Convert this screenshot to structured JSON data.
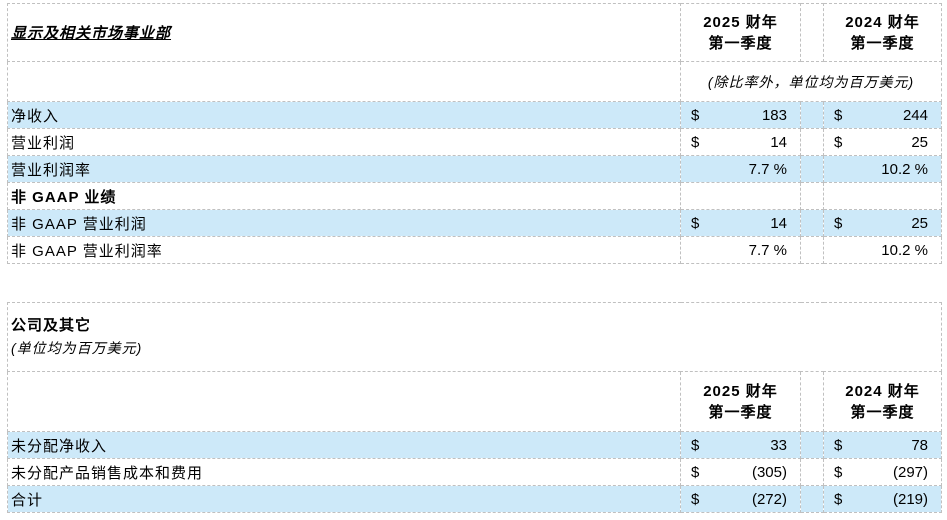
{
  "colors": {
    "row_highlight": "#CDE9F9",
    "grid_border": "#C0C0C0",
    "text": "#000000",
    "background": "#FFFFFF"
  },
  "table1": {
    "title": "显示及相关市场事业部",
    "col_headers": [
      {
        "line1": "2025 财年",
        "line2": "第一季度"
      },
      {
        "line1": "2024 财年",
        "line2": "第一季度"
      }
    ],
    "note": "(除比率外，单位均为百万美元)",
    "rows": [
      {
        "label": "净收入",
        "bold": false,
        "currency": "$",
        "v2025": "183",
        "v2024": "244",
        "highlight": true
      },
      {
        "label": "营业利润",
        "bold": false,
        "currency": "$",
        "v2025": "14",
        "v2024": "25",
        "highlight": false
      },
      {
        "label": "营业利润率",
        "bold": false,
        "currency": "",
        "v2025": "7.7 %",
        "v2024": "10.2 %",
        "highlight": true
      },
      {
        "label": "非 GAAP 业绩",
        "bold": true,
        "currency": "",
        "v2025": "",
        "v2024": "",
        "highlight": false
      },
      {
        "label": "非 GAAP 营业利润",
        "bold": false,
        "currency": "$",
        "v2025": "14",
        "v2024": "25",
        "highlight": true
      },
      {
        "label": "非 GAAP 营业利润率",
        "bold": false,
        "currency": "",
        "v2025": "7.7 %",
        "v2024": "10.2 %",
        "highlight": false
      }
    ]
  },
  "table2": {
    "title": "公司及其它",
    "subtitle": "(单位均为百万美元)",
    "col_headers": [
      {
        "line1": "2025 财年",
        "line2": "第一季度"
      },
      {
        "line1": "2024 财年",
        "line2": "第一季度"
      }
    ],
    "rows": [
      {
        "label": "未分配净收入",
        "bold": false,
        "currency": "$",
        "v2025": "33",
        "v2024": "78",
        "highlight": true
      },
      {
        "label": "未分配产品销售成本和费用",
        "bold": false,
        "currency": "$",
        "v2025": "(305)",
        "v2024": "(297)",
        "highlight": false
      },
      {
        "label": "合计",
        "bold": false,
        "currency": "$",
        "v2025": "(272)",
        "v2024": "(219)",
        "highlight": true
      }
    ]
  }
}
